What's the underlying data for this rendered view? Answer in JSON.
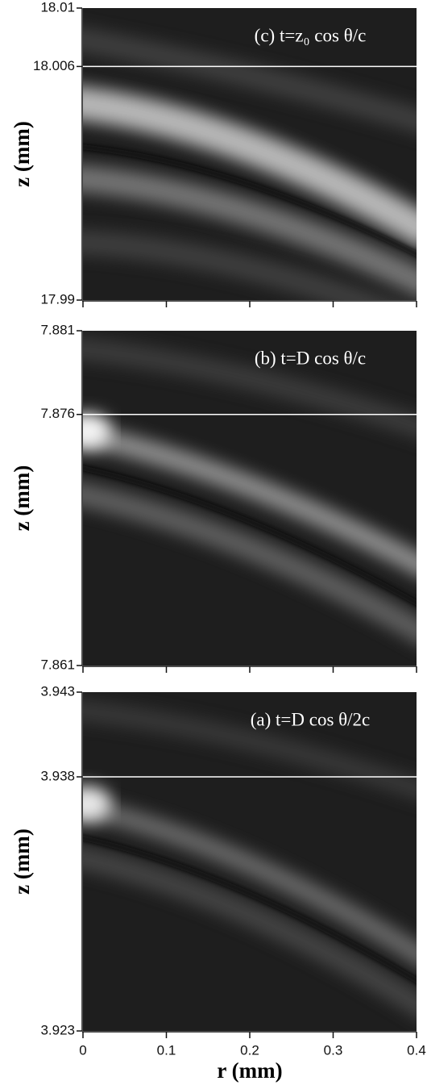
{
  "chart_data": [
    {
      "type": "heatmap",
      "title": "(c) t=z₀ cos θ/c",
      "ylabel": "z (mm)",
      "ylim": [
        17.99,
        18.01
      ],
      "yticks": [
        18.01,
        18.006,
        17.99
      ],
      "hline": 18.006,
      "hline_color": "#ffffff"
    },
    {
      "type": "heatmap",
      "title": "(b) t=D cos θ/c",
      "ylabel": "z (mm)",
      "ylim": [
        7.861,
        7.881
      ],
      "yticks": [
        7.881,
        7.876,
        7.861
      ],
      "hline": 7.876,
      "hline_color": "#ffffff"
    },
    {
      "type": "heatmap",
      "title": "(a) t=D cos θ/2c",
      "ylabel": "z (mm)",
      "ylim": [
        3.923,
        3.943
      ],
      "yticks": [
        3.943,
        3.938,
        3.923
      ],
      "hline": 3.938,
      "hline_color": "#ffffff",
      "xlabel": "r (mm)",
      "xlim": [
        0,
        0.4
      ],
      "xticks": [
        0,
        0.1,
        0.2,
        0.3,
        0.4
      ]
    }
  ]
}
